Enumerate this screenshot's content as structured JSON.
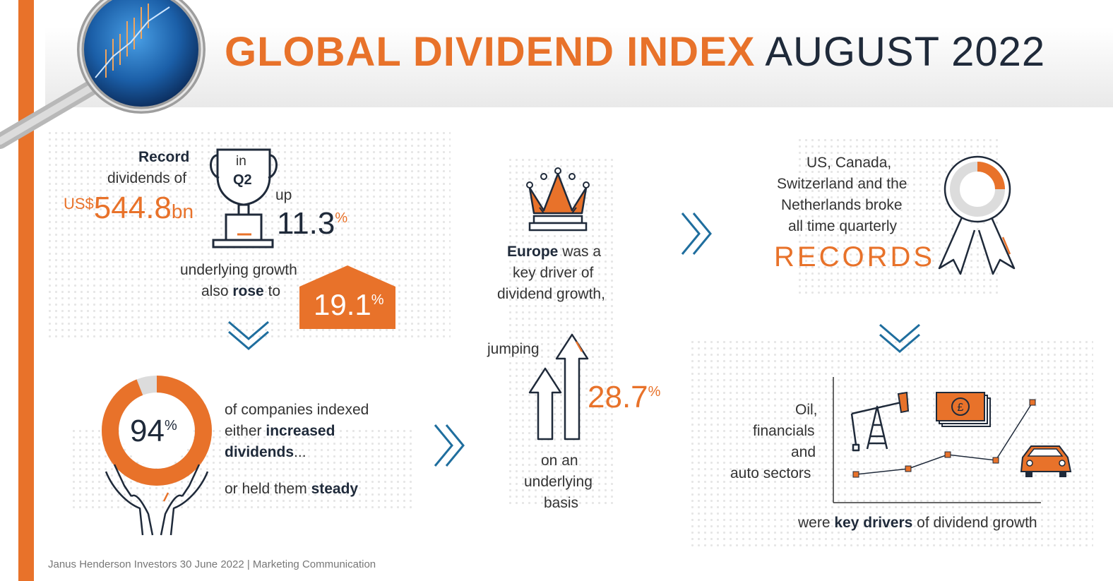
{
  "header": {
    "title_bold": "GLOBAL DIVIDEND INDEX",
    "title_light": "AUGUST 2022"
  },
  "panel_record": {
    "label_bold": "Record",
    "label_line2": "dividends of",
    "currency": "US$",
    "amount": "544.8",
    "unit": "bn",
    "trophy_in": "in",
    "trophy_q": "Q2",
    "up_label": "up",
    "up_value": "11.3",
    "percent": "%",
    "growth_line1": "underlying growth",
    "growth_line2_pre": "also",
    "growth_line2_bold": "rose",
    "growth_line2_post": "to",
    "growth_value": "19.1"
  },
  "panel_companies": {
    "pct_value": "94",
    "pct_sign": "%",
    "pct_fraction": 0.94,
    "line1": "of companies indexed",
    "line2_pre": "either",
    "line2_bold": "increased",
    "line3_bold": "dividends",
    "line3_post": "...",
    "line4_pre": "or held them",
    "line4_bold": "steady"
  },
  "panel_europe": {
    "line1_bold": "Europe",
    "line1_post": "was a",
    "line2": "key driver of",
    "line3": "dividend growth,",
    "jumping": "jumping",
    "value": "28.7",
    "pct_sign": "%",
    "basis1": "on an",
    "basis2": "underlying",
    "basis3": "basis"
  },
  "panel_records": {
    "line1": "US, Canada,",
    "line2": "Switzerland and the",
    "line3": "Netherlands broke",
    "line4": "all time quarterly",
    "records": "RECORDS"
  },
  "panel_sectors": {
    "line1": "Oil,",
    "line2": "financials",
    "line3": "and",
    "line4": "auto sectors",
    "caption_pre": "were",
    "caption_bold": "key drivers",
    "caption_post": "of dividend growth",
    "currency_symbol": "£"
  },
  "footer": {
    "text": "Janus Henderson Investors 30 June 2022 | Marketing Communication"
  },
  "colors": {
    "accent": "#e8722a",
    "navy": "#1f2a3a",
    "chevron": "#1f6e9e"
  }
}
